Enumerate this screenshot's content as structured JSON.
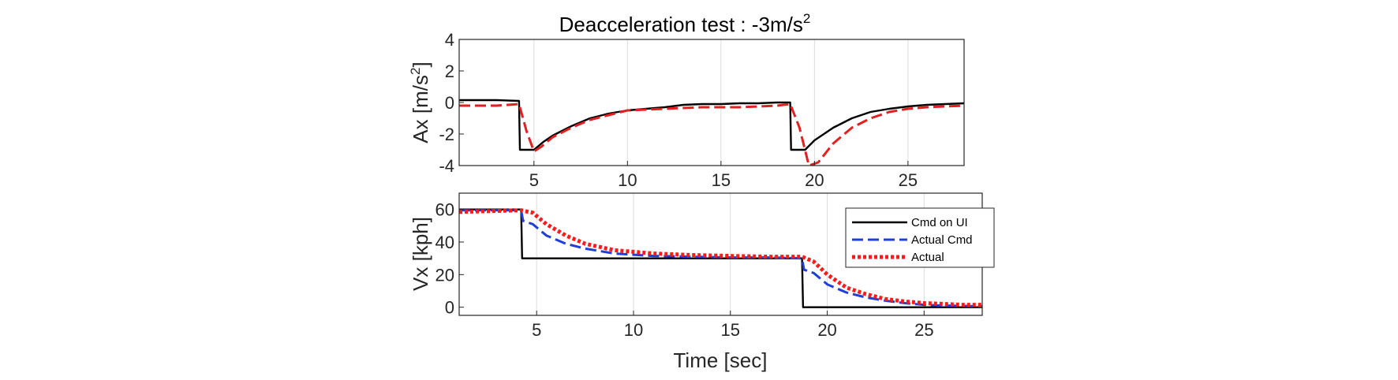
{
  "chart_data": [
    {
      "type": "line",
      "title_main": "Deacceleration test : -3m/s",
      "title_sup": "2",
      "xlabel": "",
      "ylabel_main": "Ax [m/s",
      "ylabel_sup": "2",
      "ylabel_close": "]",
      "xlim": [
        1,
        28
      ],
      "ylim": [
        -4,
        4
      ],
      "xticks": [
        5,
        10,
        15,
        20,
        25
      ],
      "yticks": [
        -4,
        -2,
        0,
        2,
        4
      ],
      "grid": "x-only",
      "series": [
        {
          "color": "#000000",
          "style": "solid",
          "x": [
            1,
            3,
            4.2,
            4.25,
            5.0,
            5.5,
            6,
            7,
            8,
            9,
            10,
            11,
            12,
            13,
            14,
            15,
            16,
            17,
            18,
            18.7,
            18.75,
            19.5,
            20,
            21,
            22,
            23,
            24,
            25,
            26,
            27,
            28
          ],
          "y": [
            0.15,
            0.15,
            0.1,
            -3.0,
            -3.0,
            -2.5,
            -2.1,
            -1.5,
            -1.0,
            -0.7,
            -0.5,
            -0.4,
            -0.3,
            -0.15,
            -0.1,
            -0.1,
            -0.05,
            -0.05,
            0.0,
            0.0,
            -3.0,
            -3.0,
            -2.4,
            -1.6,
            -1.0,
            -0.6,
            -0.4,
            -0.25,
            -0.15,
            -0.1,
            -0.05
          ]
        },
        {
          "color": "#e32020",
          "style": "dashed",
          "x": [
            1,
            3,
            4.2,
            4.6,
            5.0,
            5.4,
            6,
            7,
            8,
            9,
            10,
            11,
            12,
            13,
            14,
            15,
            16,
            17,
            18,
            18.7,
            19.2,
            19.7,
            20.2,
            21,
            22,
            23,
            24,
            25,
            26,
            27,
            28
          ],
          "y": [
            -0.2,
            -0.2,
            -0.1,
            -1.8,
            -3.1,
            -2.8,
            -2.2,
            -1.6,
            -1.1,
            -0.8,
            -0.5,
            -0.45,
            -0.4,
            -0.35,
            -0.3,
            -0.3,
            -0.3,
            -0.25,
            -0.2,
            -0.1,
            -1.6,
            -4.0,
            -3.8,
            -2.6,
            -1.6,
            -1.0,
            -0.6,
            -0.4,
            -0.3,
            -0.25,
            -0.2
          ]
        }
      ]
    },
    {
      "type": "line",
      "title": "",
      "xlabel": "Time [sec]",
      "ylabel": "Vx [kph]",
      "xlim": [
        1,
        28
      ],
      "ylim": [
        -5,
        70
      ],
      "xticks": [
        5,
        10,
        15,
        20,
        25
      ],
      "yticks": [
        0,
        20,
        40,
        60
      ],
      "grid": "x-only",
      "legend_position": "top-right",
      "series": [
        {
          "name": "Cmd on UI",
          "color": "#000000",
          "style": "solid",
          "x": [
            1,
            4.2,
            4.25,
            18.7,
            18.75,
            28
          ],
          "y": [
            60,
            60,
            30,
            30,
            0,
            0
          ]
        },
        {
          "name": "Actual Cmd",
          "color": "#1f3fd8",
          "style": "dashed",
          "x": [
            1,
            4.2,
            4.3,
            4.8,
            5.5,
            6.5,
            7.5,
            9,
            11,
            13,
            15,
            17,
            18.7,
            18.8,
            19.3,
            20,
            21,
            22,
            23,
            24,
            25,
            26,
            27,
            28
          ],
          "y": [
            59.5,
            59.5,
            53,
            51,
            44,
            39,
            36,
            33,
            31.5,
            31,
            30.5,
            30.5,
            30,
            23,
            21,
            14,
            9,
            6,
            4,
            2.5,
            1.5,
            1,
            0.8,
            0.5
          ]
        },
        {
          "name": "Actual",
          "color": "#ff1a1a",
          "style": "dotted",
          "x": [
            1,
            4.2,
            4.8,
            5.5,
            6.5,
            7.5,
            9,
            11,
            13,
            15,
            17,
            18.7,
            19.3,
            20,
            21,
            22,
            23,
            24,
            25,
            26,
            27,
            28
          ],
          "y": [
            58.5,
            59.5,
            58,
            51,
            44,
            39,
            35,
            33,
            32,
            31.5,
            31,
            31,
            28,
            20,
            12,
            8,
            5,
            3.5,
            2.5,
            2,
            1.5,
            1.5
          ]
        }
      ]
    }
  ]
}
